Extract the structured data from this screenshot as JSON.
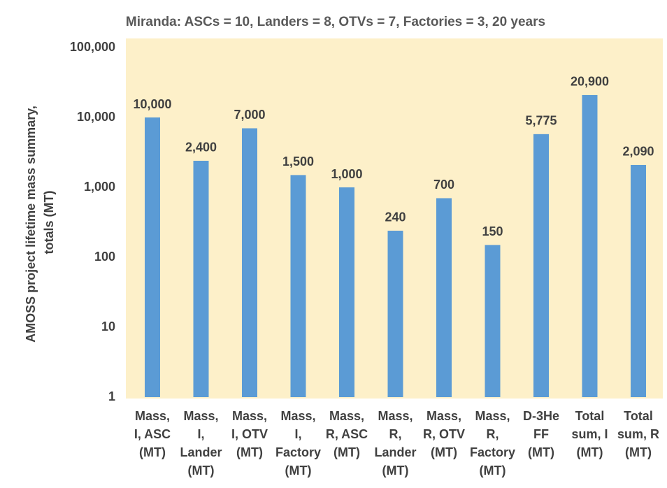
{
  "chart_data": {
    "type": "bar",
    "title": "Miranda: ASCs = 10, Landers = 8, OTVs = 7, Factories = 3, 20 years",
    "ylabel": [
      "AMOSS project lifetime mass summary,",
      "totals (MT)"
    ],
    "categories": [
      [
        "Mass,",
        "I, ASC",
        "(MT)"
      ],
      [
        "Mass,",
        "I,",
        "Lander",
        "(MT)"
      ],
      [
        "Mass,",
        "I, OTV",
        "(MT)"
      ],
      [
        "Mass,",
        "I,",
        "Factory",
        "(MT)"
      ],
      [
        "Mass,",
        "R, ASC",
        "(MT)"
      ],
      [
        "Mass,",
        "R,",
        "Lander",
        "(MT)"
      ],
      [
        "Mass,",
        "R, OTV",
        "(MT)"
      ],
      [
        "Mass,",
        "R,",
        "Factory",
        "(MT)"
      ],
      [
        "D-3He",
        "FF",
        "(MT)"
      ],
      [
        "Total",
        "sum, I",
        "(MT)"
      ],
      [
        "Total",
        "sum, R",
        "(MT)"
      ]
    ],
    "values": [
      10000,
      2400,
      7000,
      1500,
      1000,
      240,
      700,
      150,
      5775,
      20900,
      2090
    ],
    "value_labels": [
      "10,000",
      "2,400",
      "7,000",
      "1,500",
      "1,000",
      "240",
      "700",
      "150",
      "5,775",
      "20,900",
      "2,090"
    ],
    "color": "#5b9bd5",
    "log_scale": true,
    "grid": false,
    "ylim": [
      1,
      100000
    ],
    "yticks": [
      1,
      10,
      100,
      {
        "value": 1000,
        "label": "1,000"
      },
      {
        "value": 10000,
        "label": "10,000"
      },
      {
        "value": 100000,
        "label": "100,000"
      }
    ]
  }
}
